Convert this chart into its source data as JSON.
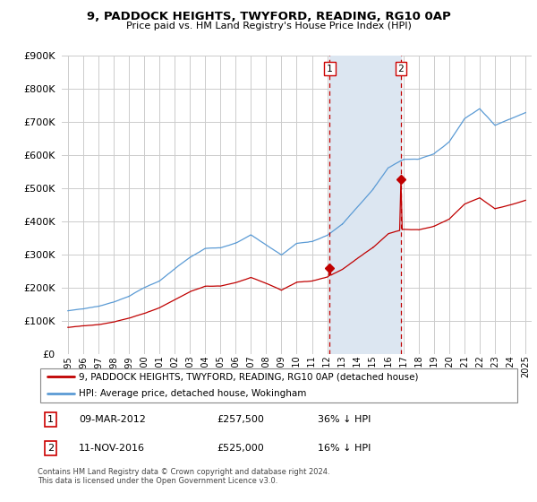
{
  "title": "9, PADDOCK HEIGHTS, TWYFORD, READING, RG10 0AP",
  "subtitle": "Price paid vs. HM Land Registry's House Price Index (HPI)",
  "legend_line1": "9, PADDOCK HEIGHTS, TWYFORD, READING, RG10 0AP (detached house)",
  "legend_line2": "HPI: Average price, detached house, Wokingham",
  "footnote": "Contains HM Land Registry data © Crown copyright and database right 2024.\nThis data is licensed under the Open Government Licence v3.0.",
  "transaction1_date": "09-MAR-2012",
  "transaction1_price": "£257,500",
  "transaction1_hpi": "36% ↓ HPI",
  "transaction2_date": "11-NOV-2016",
  "transaction2_price": "£525,000",
  "transaction2_hpi": "16% ↓ HPI",
  "hpi_color": "#5b9bd5",
  "price_color": "#c00000",
  "shade_color": "#dce6f1",
  "ylim": [
    0,
    900000
  ],
  "yticks": [
    0,
    100000,
    200000,
    300000,
    400000,
    500000,
    600000,
    700000,
    800000,
    900000
  ],
  "transaction1_x": 2012.19,
  "transaction2_x": 2016.87,
  "xlim_left": 1994.6,
  "xlim_right": 2025.4
}
